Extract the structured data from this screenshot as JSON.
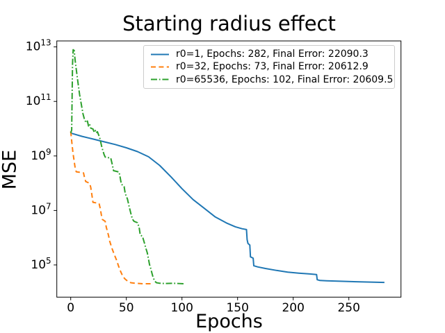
{
  "chart_data": {
    "type": "line",
    "title": "Starting radius effect",
    "xlabel": "Epochs",
    "ylabel": "MSE",
    "yscale": "log",
    "grid": false,
    "legend_position": "upper center",
    "xlim": [
      -12.5,
      296.9
    ],
    "ylim_log10": [
      3.82,
      13.22
    ],
    "x_ticks": [
      0,
      50,
      100,
      150,
      200,
      250
    ],
    "y_tick_exponents": [
      5,
      7,
      9,
      11,
      13
    ],
    "y_tick_base": "10",
    "series": [
      {
        "name": "r0=1",
        "label": "r0=1, Epochs: 282, Final Error: 22090.3",
        "color": "#1f77b4",
        "linestyle": "solid",
        "epochs": 282,
        "final_error": 22090.3,
        "points_epoch_log10mse": [
          [
            0,
            9.84
          ],
          [
            10,
            9.72
          ],
          [
            20,
            9.62
          ],
          [
            30,
            9.52
          ],
          [
            40,
            9.42
          ],
          [
            50,
            9.3
          ],
          [
            60,
            9.16
          ],
          [
            70,
            8.97
          ],
          [
            80,
            8.65
          ],
          [
            90,
            8.24
          ],
          [
            100,
            7.8
          ],
          [
            110,
            7.4
          ],
          [
            120,
            7.08
          ],
          [
            130,
            6.76
          ],
          [
            140,
            6.54
          ],
          [
            148,
            6.4
          ],
          [
            154,
            6.33
          ],
          [
            158,
            6.3
          ],
          [
            158.6,
            5.93
          ],
          [
            159.3,
            5.79
          ],
          [
            161,
            5.73
          ],
          [
            161.6,
            5.3
          ],
          [
            164,
            5.25
          ],
          [
            164.6,
            4.97
          ],
          [
            168,
            4.93
          ],
          [
            175,
            4.87
          ],
          [
            185,
            4.8
          ],
          [
            195,
            4.74
          ],
          [
            205,
            4.7
          ],
          [
            215,
            4.67
          ],
          [
            221,
            4.65
          ],
          [
            221.6,
            4.46
          ],
          [
            224,
            4.43
          ],
          [
            230,
            4.42
          ],
          [
            245,
            4.4
          ],
          [
            260,
            4.38
          ],
          [
            282,
            4.36
          ]
        ]
      },
      {
        "name": "r0=32",
        "label": "r0=32, Epochs: 73, Final Error: 20612.9",
        "color": "#ff7f0e",
        "linestyle": "dashed",
        "epochs": 73,
        "final_error": 20612.9,
        "points_epoch_log10mse": [
          [
            0,
            9.9
          ],
          [
            1,
            9.5
          ],
          [
            2,
            9.12
          ],
          [
            3,
            8.84
          ],
          [
            4,
            8.56
          ],
          [
            5,
            8.42
          ],
          [
            11.5,
            8.38
          ],
          [
            12.5,
            8.19
          ],
          [
            13.5,
            8.06
          ],
          [
            17,
            8.0
          ],
          [
            18,
            7.85
          ],
          [
            19,
            7.58
          ],
          [
            20,
            7.3
          ],
          [
            25.5,
            7.26
          ],
          [
            26.5,
            7.08
          ],
          [
            27.5,
            6.85
          ],
          [
            28.5,
            6.67
          ],
          [
            31,
            6.6
          ],
          [
            32,
            6.38
          ],
          [
            34,
            6.08
          ],
          [
            35,
            5.88
          ],
          [
            37,
            5.62
          ],
          [
            39,
            5.4
          ],
          [
            41,
            5.2
          ],
          [
            43,
            4.96
          ],
          [
            45,
            4.75
          ],
          [
            47,
            4.57
          ],
          [
            49,
            4.48
          ],
          [
            51,
            4.41
          ],
          [
            54,
            4.35
          ],
          [
            58,
            4.33
          ],
          [
            65,
            4.31
          ],
          [
            73,
            4.31
          ]
        ]
      },
      {
        "name": "r0=65536",
        "label": "r0=65536, Epochs: 102, Final Error: 20609.5",
        "color": "#2ca02c",
        "linestyle": "dashdot",
        "epochs": 102,
        "final_error": 20609.5,
        "points_epoch_log10mse": [
          [
            0,
            9.84
          ],
          [
            0.9,
            9.95
          ],
          [
            1.6,
            12.35
          ],
          [
            2.2,
            12.9
          ],
          [
            3.1,
            12.87
          ],
          [
            4,
            12.5
          ],
          [
            6,
            11.85
          ],
          [
            8,
            11.25
          ],
          [
            9.5,
            10.9
          ],
          [
            11,
            10.55
          ],
          [
            12.5,
            10.32
          ],
          [
            14,
            10.22
          ],
          [
            15,
            10.28
          ],
          [
            16,
            10.1
          ],
          [
            17,
            10.16
          ],
          [
            18,
            10.02
          ],
          [
            20,
            9.99
          ],
          [
            21,
            9.88
          ],
          [
            22,
            9.94
          ],
          [
            23,
            9.84
          ],
          [
            24,
            9.89
          ],
          [
            25,
            9.78
          ],
          [
            26,
            9.68
          ],
          [
            27,
            9.5
          ],
          [
            28,
            9.32
          ],
          [
            30,
            9.05
          ],
          [
            31,
            8.96
          ],
          [
            36,
            8.92
          ],
          [
            37.5,
            8.66
          ],
          [
            38.5,
            8.46
          ],
          [
            43.5,
            8.41
          ],
          [
            44.5,
            8.2
          ],
          [
            45.5,
            7.97
          ],
          [
            48,
            7.88
          ],
          [
            49,
            7.62
          ],
          [
            51,
            7.42
          ],
          [
            52.5,
            7.15
          ],
          [
            54,
            6.9
          ],
          [
            55.5,
            6.68
          ],
          [
            57,
            6.6
          ],
          [
            60,
            6.55
          ],
          [
            61.5,
            6.38
          ],
          [
            62.5,
            6.1
          ],
          [
            64.5,
            6.05
          ],
          [
            66,
            5.84
          ],
          [
            67.5,
            5.62
          ],
          [
            68.8,
            5.45
          ],
          [
            69.8,
            5.24
          ],
          [
            70.8,
            5.02
          ],
          [
            71.9,
            4.88
          ],
          [
            72.9,
            4.72
          ],
          [
            74,
            4.55
          ],
          [
            75.5,
            4.41
          ],
          [
            77,
            4.35
          ],
          [
            80,
            4.33
          ],
          [
            85,
            4.32
          ],
          [
            92,
            4.33
          ],
          [
            102,
            4.31
          ]
        ]
      }
    ]
  }
}
